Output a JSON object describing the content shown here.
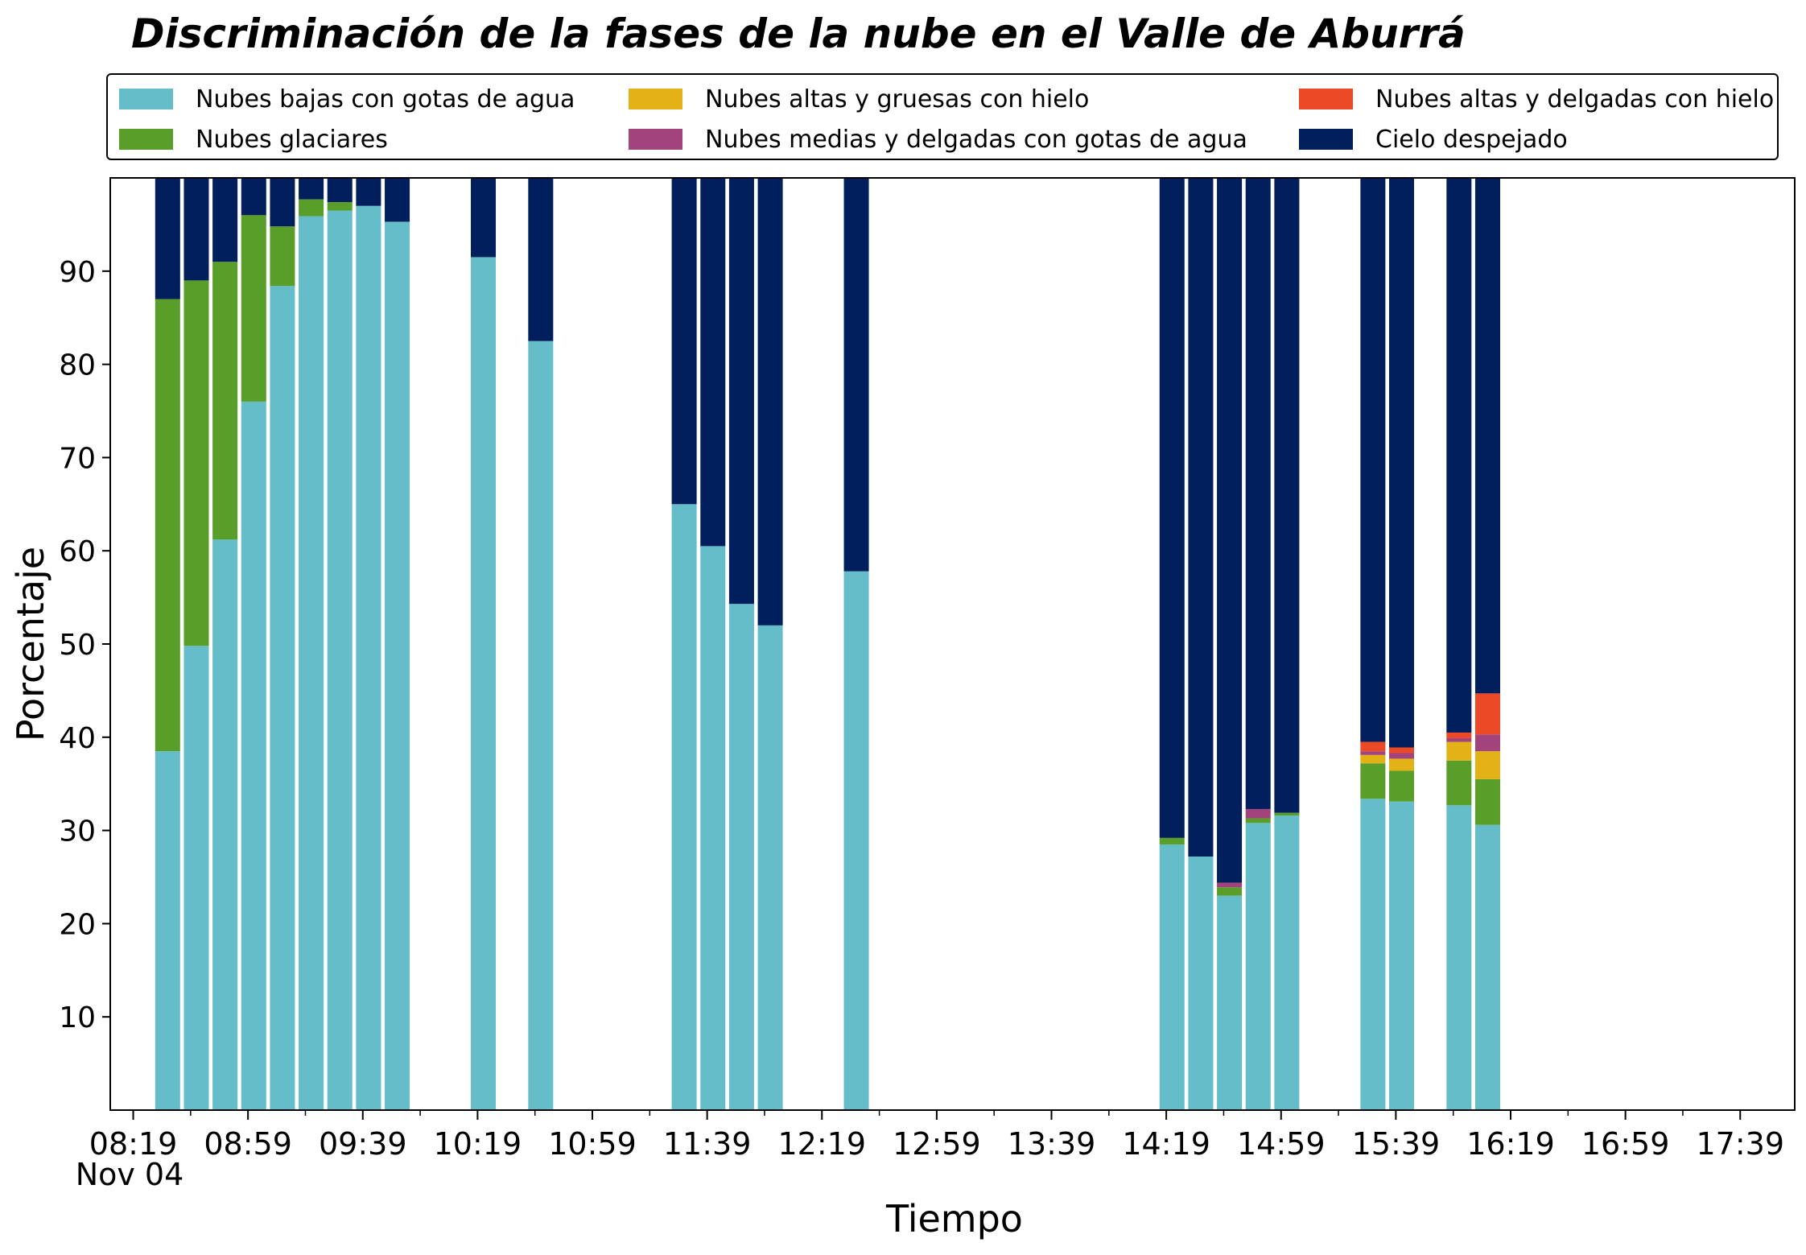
{
  "chart_data": {
    "type": "bar",
    "stacked": true,
    "title": "Discriminación de la fases de la nube en el Valle de Aburrá",
    "xlabel": "Tiempo",
    "ylabel": "Porcentaje",
    "ylim": [
      0,
      100
    ],
    "y_ticks": [
      10,
      20,
      30,
      40,
      50,
      60,
      70,
      80,
      90
    ],
    "x_range_minutes": [
      491,
      1078
    ],
    "x_tick_minutes": [
      499,
      539,
      579,
      619,
      659,
      699,
      739,
      779,
      819,
      859,
      899,
      939,
      979,
      1019,
      1059
    ],
    "x_tick_labels": [
      "08:19",
      "08:59",
      "09:39",
      "10:19",
      "10:59",
      "11:39",
      "12:19",
      "12:59",
      "13:39",
      "14:19",
      "14:59",
      "15:39",
      "16:19",
      "16:59",
      "17:39"
    ],
    "x_date_label": "Nov 04",
    "bar_width_minutes": 8.7,
    "legend_placement": "top",
    "series": [
      {
        "name": "Nubes bajas con gotas de agua",
        "color": "#65bdc9"
      },
      {
        "name": "Nubes glaciares",
        "color": "#5a9e2a"
      },
      {
        "name": "Nubes altas y gruesas con hielo",
        "color": "#e3b216"
      },
      {
        "name": "Nubes medias y delgadas con gotas de agua",
        "color": "#a2447b"
      },
      {
        "name": "Nubes altas y delgadas con hielo",
        "color": "#ec4a27"
      },
      {
        "name": "Cielo despejado",
        "color": "#001f5c"
      }
    ],
    "x_times": [
      "08:31",
      "08:41",
      "08:51",
      "09:01",
      "09:11",
      "09:21",
      "09:31",
      "09:41",
      "09:51",
      "10:21",
      "10:41",
      "11:31",
      "11:41",
      "11:51",
      "12:01",
      "12:31",
      "14:21",
      "14:31",
      "14:41",
      "14:51",
      "15:01",
      "15:31",
      "15:41",
      "16:01",
      "16:11"
    ],
    "x": [
      511,
      521,
      531,
      541,
      551,
      561,
      571,
      581,
      591,
      621,
      641,
      691,
      701,
      711,
      721,
      751,
      861,
      871,
      881,
      891,
      901,
      931,
      941,
      961,
      971
    ],
    "values": [
      [
        38.5,
        48.5,
        0,
        0,
        0,
        13
      ],
      [
        49.8,
        39.2,
        0,
        0,
        0,
        11
      ],
      [
        61.2,
        29.8,
        0,
        0,
        0,
        9
      ],
      [
        76,
        20,
        0,
        0,
        0,
        4
      ],
      [
        88.4,
        6.4,
        0,
        0,
        0,
        5.2
      ],
      [
        95.9,
        1.8,
        0,
        0,
        0,
        2.3
      ],
      [
        96.5,
        0.9,
        0,
        0,
        0,
        2.6
      ],
      [
        97,
        0,
        0,
        0,
        0,
        3
      ],
      [
        95.3,
        0,
        0,
        0,
        0,
        4.7
      ],
      [
        91.5,
        0,
        0,
        0,
        0,
        8.5
      ],
      [
        82.5,
        0,
        0,
        0,
        0,
        17.5
      ],
      [
        65,
        0,
        0,
        0,
        0,
        35
      ],
      [
        60.5,
        0,
        0,
        0,
        0,
        39.5
      ],
      [
        54.3,
        0,
        0,
        0,
        0,
        45.7
      ],
      [
        52,
        0,
        0,
        0,
        0,
        48
      ],
      [
        57.8,
        0,
        0,
        0,
        0,
        42.2
      ],
      [
        28.5,
        0.7,
        0,
        0,
        0,
        70.8
      ],
      [
        27.2,
        0,
        0,
        0,
        0,
        72.8
      ],
      [
        23,
        0.9,
        0,
        0.5,
        0,
        75.6
      ],
      [
        30.8,
        0.5,
        0,
        1,
        0,
        67.7
      ],
      [
        31.6,
        0.3,
        0,
        0,
        0,
        68.1
      ],
      [
        33.4,
        3.8,
        0.9,
        0.4,
        1,
        60.5
      ],
      [
        33.1,
        3.3,
        1.3,
        0.6,
        0.6,
        61.1
      ],
      [
        32.7,
        4.8,
        2,
        0.4,
        0.6,
        59.5
      ],
      [
        30.6,
        4.9,
        3,
        1.8,
        4.4,
        55.3
      ]
    ]
  }
}
